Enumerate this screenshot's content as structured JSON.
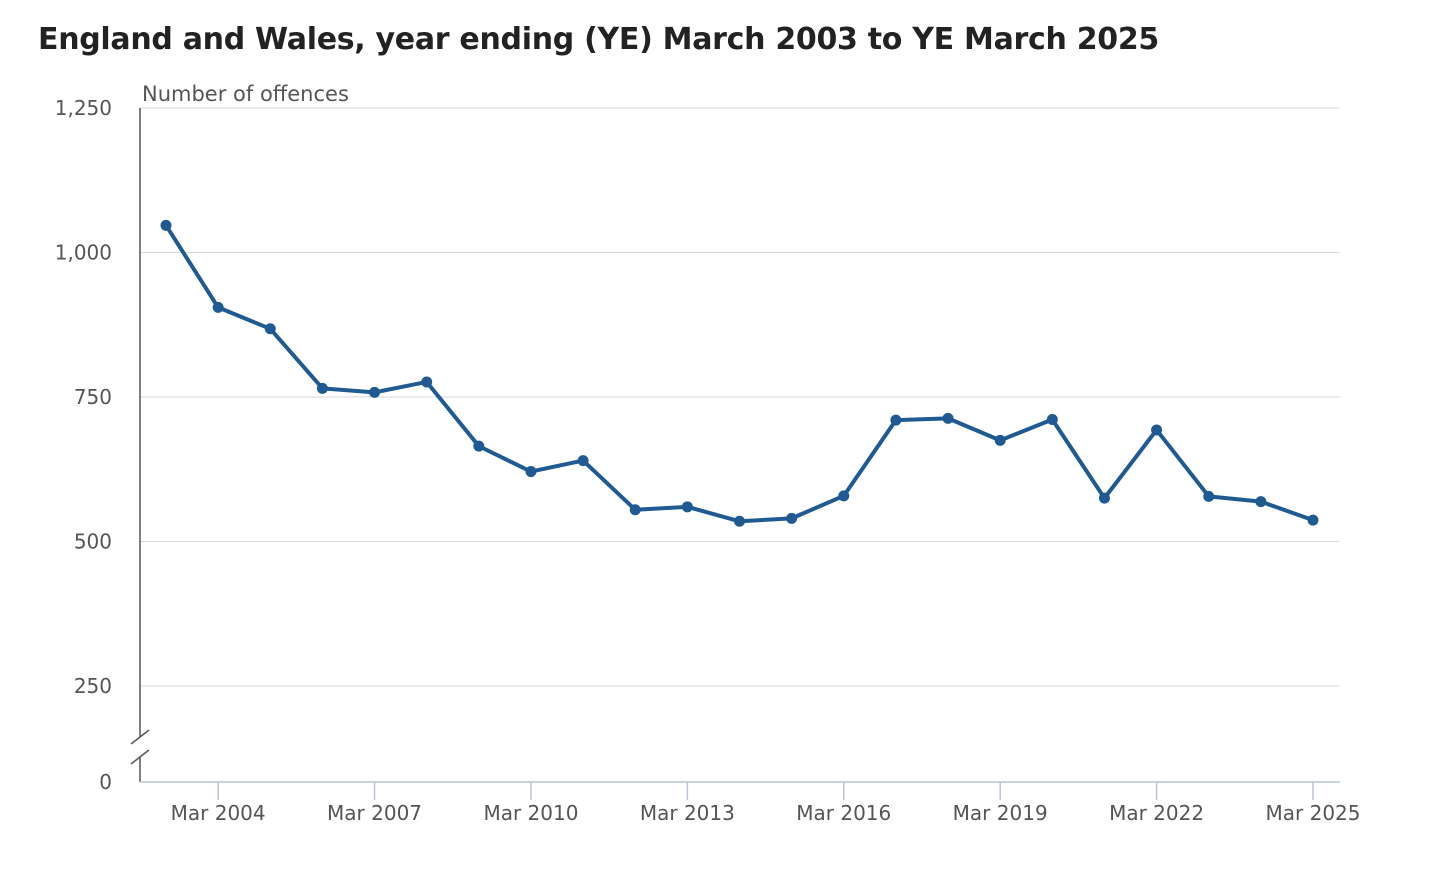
{
  "chart_data": {
    "type": "line",
    "title": "England and Wales, year ending (YE) March 2003 to YE March 2025",
    "ylabel": "Number of offences",
    "xlabel": "",
    "ylim": [
      0,
      1250
    ],
    "y_ticks": [
      {
        "value": 0,
        "label": "0"
      },
      {
        "value": 250,
        "label": "250"
      },
      {
        "value": 500,
        "label": "500"
      },
      {
        "value": 750,
        "label": "750"
      },
      {
        "value": 1000,
        "label": "1,000"
      },
      {
        "value": 1250,
        "label": "1,250"
      }
    ],
    "y_axis_break": true,
    "grid": true,
    "x_ticks": [
      "Mar 2004",
      "Mar 2007",
      "Mar 2010",
      "Mar 2013",
      "Mar 2016",
      "Mar 2019",
      "Mar 2022",
      "Mar 2025"
    ],
    "x": [
      "Mar 2003",
      "Mar 2004",
      "Mar 2005",
      "Mar 2006",
      "Mar 2007",
      "Mar 2008",
      "Mar 2009",
      "Mar 2010",
      "Mar 2011",
      "Mar 2012",
      "Mar 2013",
      "Mar 2014",
      "Mar 2015",
      "Mar 2016",
      "Mar 2017",
      "Mar 2018",
      "Mar 2019",
      "Mar 2020",
      "Mar 2021",
      "Mar 2022",
      "Mar 2023",
      "Mar 2024",
      "Mar 2025"
    ],
    "series": [
      {
        "color": "#1f5a92",
        "values": [
          1047,
          905,
          868,
          765,
          758,
          776,
          665,
          621,
          640,
          555,
          560,
          535,
          540,
          579,
          710,
          713,
          675,
          711,
          575,
          693,
          578,
          569,
          537
        ]
      }
    ]
  }
}
